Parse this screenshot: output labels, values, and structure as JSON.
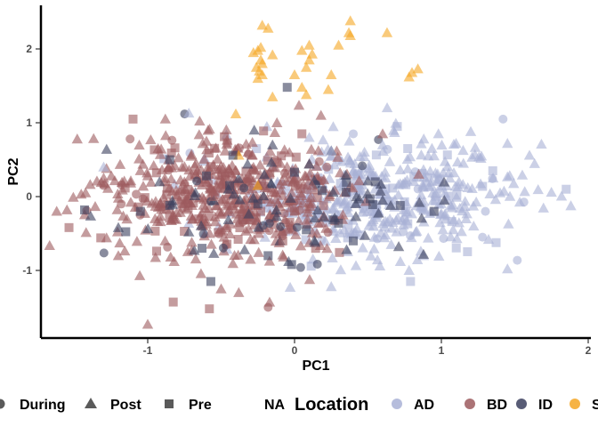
{
  "chart_data": {
    "type": "scatter",
    "xlabel": "PC1",
    "ylabel": "PC2",
    "xlim": [
      -1.75,
      2.0
    ],
    "ylim": [
      -1.85,
      2.6
    ],
    "x_ticks": [
      -1,
      0,
      1,
      2
    ],
    "x_tick_labels": [
      "-1",
      "0",
      "1",
      "2"
    ],
    "y_ticks": [
      -1,
      0,
      1,
      2
    ],
    "y_tick_labels": [
      "-1",
      "0",
      "1",
      "2"
    ],
    "grid": false,
    "legend_position": "bottom",
    "point_alpha": 0.6,
    "shape_legend": {
      "title": "",
      "items": [
        {
          "label": "During",
          "shape": "circle"
        },
        {
          "label": "Post",
          "shape": "triangle"
        },
        {
          "label": "Pre",
          "shape": "square"
        },
        {
          "label": "NA",
          "shape": "none"
        }
      ]
    },
    "color_legend": {
      "title": "Location",
      "items": [
        {
          "label": "AD",
          "color": "#a9b1d6"
        },
        {
          "label": "BD",
          "color": "#9c5a5e"
        },
        {
          "label": "ID",
          "color": "#3b3f5e"
        },
        {
          "label": "SD",
          "color": "#f5a623"
        }
      ]
    },
    "series": [
      {
        "name": "SD",
        "color": "#f5a623",
        "points": [
          [
            -0.22,
            2.32
          ],
          [
            -0.18,
            2.28
          ],
          [
            0.38,
            2.38
          ],
          [
            0.37,
            2.22
          ],
          [
            0.38,
            2.18
          ],
          [
            0.63,
            2.22
          ],
          [
            0.3,
            2.05
          ],
          [
            0.1,
            2.05
          ],
          [
            0.05,
            1.98
          ],
          [
            0.12,
            1.93
          ],
          [
            -0.23,
            2.02
          ],
          [
            -0.25,
            1.98
          ],
          [
            -0.28,
            1.95
          ],
          [
            -0.15,
            1.92
          ],
          [
            -0.23,
            1.85
          ],
          [
            -0.22,
            1.8
          ],
          [
            -0.26,
            1.75
          ],
          [
            -0.24,
            1.7
          ],
          [
            -0.22,
            1.65
          ],
          [
            -0.25,
            1.6
          ],
          [
            0.1,
            1.85
          ],
          [
            0.08,
            1.75
          ],
          [
            0.0,
            1.65
          ],
          [
            0.25,
            1.65
          ],
          [
            0.05,
            1.48
          ],
          [
            0.23,
            1.45
          ],
          [
            0.08,
            1.38
          ],
          [
            -0.15,
            1.35
          ],
          [
            0.84,
            1.73
          ],
          [
            0.8,
            1.68
          ],
          [
            0.78,
            1.62
          ],
          [
            -0.4,
            1.12
          ],
          [
            -0.38,
            0.56
          ],
          [
            -0.25,
            0.15
          ]
        ]
      },
      {
        "name": "ID",
        "color": "#3b3f5e",
        "points": [
          [
            -0.05,
            1.48
          ],
          [
            -1.28,
            0.64
          ],
          [
            -1.43,
            -0.18
          ],
          [
            -1.2,
            -0.42
          ],
          [
            -0.57,
            -1.15
          ],
          [
            -0.04,
            -0.88
          ],
          [
            -0.02,
            -0.92
          ],
          [
            0.14,
            -0.62
          ],
          [
            0.3,
            -0.36
          ],
          [
            0.44,
            -0.03
          ],
          [
            0.35,
            0.06
          ],
          [
            0.1,
            0.44
          ],
          [
            0.0,
            0.33
          ],
          [
            -0.32,
            0.44
          ],
          [
            -0.42,
            0.56
          ],
          [
            -0.55,
            -0.77
          ],
          [
            -0.63,
            -0.7
          ],
          [
            -0.34,
            -0.72
          ],
          [
            -0.18,
            -0.8
          ],
          [
            -0.72,
            -0.48
          ],
          [
            -0.85,
            -0.12
          ],
          [
            -0.92,
            0.2
          ],
          [
            -1.05,
            -0.2
          ],
          [
            0.6,
            -0.05
          ],
          [
            0.72,
            -0.12
          ],
          [
            0.85,
            -0.08
          ],
          [
            0.95,
            -0.2
          ],
          [
            0.2,
            -0.28
          ],
          [
            0.08,
            -0.45
          ],
          [
            -0.1,
            -0.6
          ],
          [
            -0.25,
            -0.1
          ],
          [
            -0.45,
            0.1
          ],
          [
            -0.6,
            0.28
          ],
          [
            0.25,
            0.62
          ],
          [
            0.55,
            0.2
          ],
          [
            1.02,
            -0.05
          ],
          [
            -0.85,
            0.5
          ],
          [
            -0.15,
            0.7
          ],
          [
            0.4,
            -0.6
          ]
        ]
      },
      {
        "name": "AD",
        "color": "#a9b1d6",
        "points": [
          [
            -0.72,
            1.13
          ],
          [
            -1.3,
            0.4
          ],
          [
            0.25,
            -1.22
          ],
          [
            -0.03,
            -1.23
          ],
          [
            1.85,
            0.1
          ],
          [
            1.6,
            0.56
          ],
          [
            1.42,
            1.05
          ],
          [
            1.45,
            0.72
          ],
          [
            1.2,
            0.88
          ],
          [
            1.45,
            -0.98
          ],
          [
            0.78,
            -1.0
          ],
          [
            0.79,
            -1.15
          ],
          [
            1.08,
            -0.45
          ],
          [
            1.28,
            -0.55
          ],
          [
            1.1,
            0.72
          ],
          [
            0.95,
            0.55
          ],
          [
            1.05,
            0.32
          ],
          [
            1.18,
            0.12
          ],
          [
            1.35,
            0.35
          ],
          [
            1.4,
            0.05
          ],
          [
            1.3,
            -0.2
          ],
          [
            1.22,
            -0.4
          ],
          [
            1.15,
            0.45
          ],
          [
            0.98,
            0.85
          ],
          [
            0.88,
            0.78
          ],
          [
            0.7,
            0.95
          ],
          [
            0.6,
            0.7
          ],
          [
            0.4,
            0.85
          ],
          [
            0.25,
            0.62
          ],
          [
            0.1,
            0.8
          ]
        ]
      },
      {
        "name": "BD",
        "color": "#9c5a5e",
        "points": [
          [
            -1.48,
            0.78
          ],
          [
            -1.62,
            -0.2
          ],
          [
            -1.55,
            -0.18
          ],
          [
            -1.2,
            -0.8
          ],
          [
            -0.58,
            -1.52
          ],
          [
            -0.17,
            -1.43
          ],
          [
            -0.18,
            -1.5
          ],
          [
            -1.0,
            -1.73
          ],
          [
            -0.38,
            -1.3
          ],
          [
            -0.5,
            -1.25
          ],
          [
            -1.05,
            0.35
          ],
          [
            -1.1,
            1.05
          ],
          [
            -0.88,
            1.05
          ],
          [
            -1.12,
            0.78
          ],
          [
            -1.3,
            0.25
          ],
          [
            -0.6,
            0.75
          ],
          [
            -0.12,
            1.0
          ],
          [
            0.18,
            1.1
          ],
          [
            0.05,
            0.85
          ],
          [
            0.6,
            0.85
          ],
          [
            0.22,
            0.4
          ],
          [
            -0.82,
            -0.88
          ],
          [
            -0.7,
            -0.62
          ],
          [
            -0.48,
            -0.55
          ],
          [
            -0.3,
            -0.85
          ],
          [
            -0.08,
            -0.6
          ],
          [
            -0.95,
            -0.3
          ],
          [
            -1.18,
            -0.1
          ],
          [
            -0.75,
            0.2
          ],
          [
            -0.55,
            0.0
          ],
          [
            -0.4,
            0.35
          ],
          [
            -0.2,
            0.12
          ],
          [
            0.0,
            -0.2
          ],
          [
            0.12,
            0.15
          ],
          [
            -1.3,
            0.15
          ]
        ]
      }
    ]
  }
}
